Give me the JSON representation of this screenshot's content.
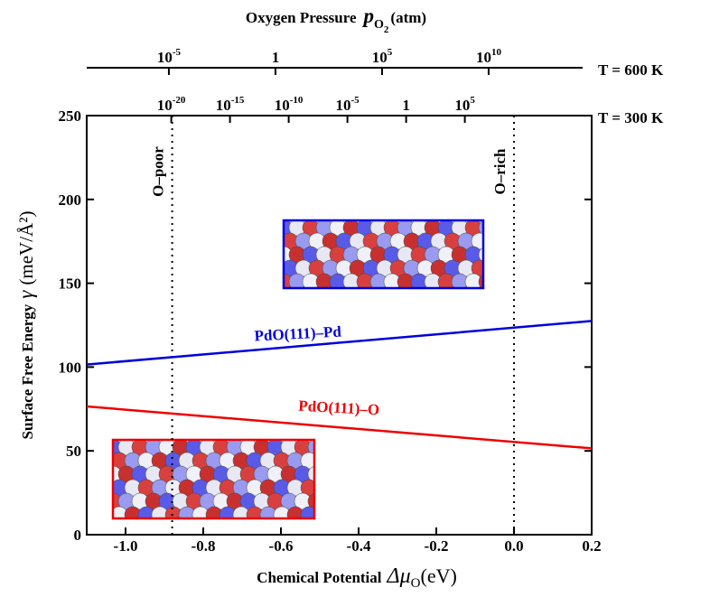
{
  "chart_data": {
    "type": "line",
    "x_title": {
      "text": "Chemical Potential",
      "symbol": "Δμ",
      "subscript": "O",
      "unit": "(eV)"
    },
    "y_title": {
      "text": "Surface Free Energy",
      "symbol": "γ",
      "unit": "(meV/Å²)"
    },
    "top_title": {
      "text": "Oxygen Pressure",
      "symbol": "p",
      "subscript": "O",
      "subsubscript": "2",
      "unit": "(atm)"
    },
    "x": [
      -1.1,
      0.2
    ],
    "series": [
      {
        "name": "PdO(111)–Pd",
        "color": "#0000dd",
        "values": [
          101.5,
          127.5
        ]
      },
      {
        "name": "PdO(111)–O",
        "color": "#ee0000",
        "values": [
          76.5,
          51.5
        ]
      }
    ],
    "xlim": [
      -1.1,
      0.2
    ],
    "xticks": [
      {
        "value": -1,
        "label": "-1.0"
      },
      -0.8,
      -0.6,
      -0.4,
      -0.2,
      {
        "value": 0,
        "label": "0.0"
      },
      0.2
    ],
    "ylim": [
      0,
      250
    ],
    "yticks": [
      0,
      50,
      100,
      150,
      200,
      250
    ],
    "vlines": [
      {
        "x": -0.88,
        "label": "O–poor"
      },
      {
        "x": 0,
        "label": "O–rich"
      }
    ],
    "pressure_axes": [
      {
        "label": "T = 600 K",
        "log": true,
        "xlim": [
          1.4e-09,
          680000000000000.0
        ],
        "ticks": [
          {
            "value": 1e-05,
            "label": "10",
            "exponent": "-5"
          },
          1,
          {
            "value": 100000.0,
            "label": "10",
            "exponent": "5"
          },
          {
            "value": 10000000000.0,
            "label": "10",
            "exponent": "10"
          }
        ]
      },
      {
        "label": "T = 300 K",
        "log": true,
        "xlim": [
          6.3e-28,
          6300000000000000.0
        ],
        "ticks": [
          {
            "value": 1e-20,
            "label": "10",
            "exponent": "-20"
          },
          {
            "value": 1e-15,
            "label": "10",
            "exponent": "-15"
          },
          {
            "value": 1e-10,
            "label": "10",
            "exponent": "-10"
          },
          {
            "value": 1e-05,
            "label": "10",
            "exponent": "-5"
          },
          1,
          {
            "value": 100000.0,
            "label": "10",
            "exponent": "5"
          }
        ]
      }
    ]
  }
}
